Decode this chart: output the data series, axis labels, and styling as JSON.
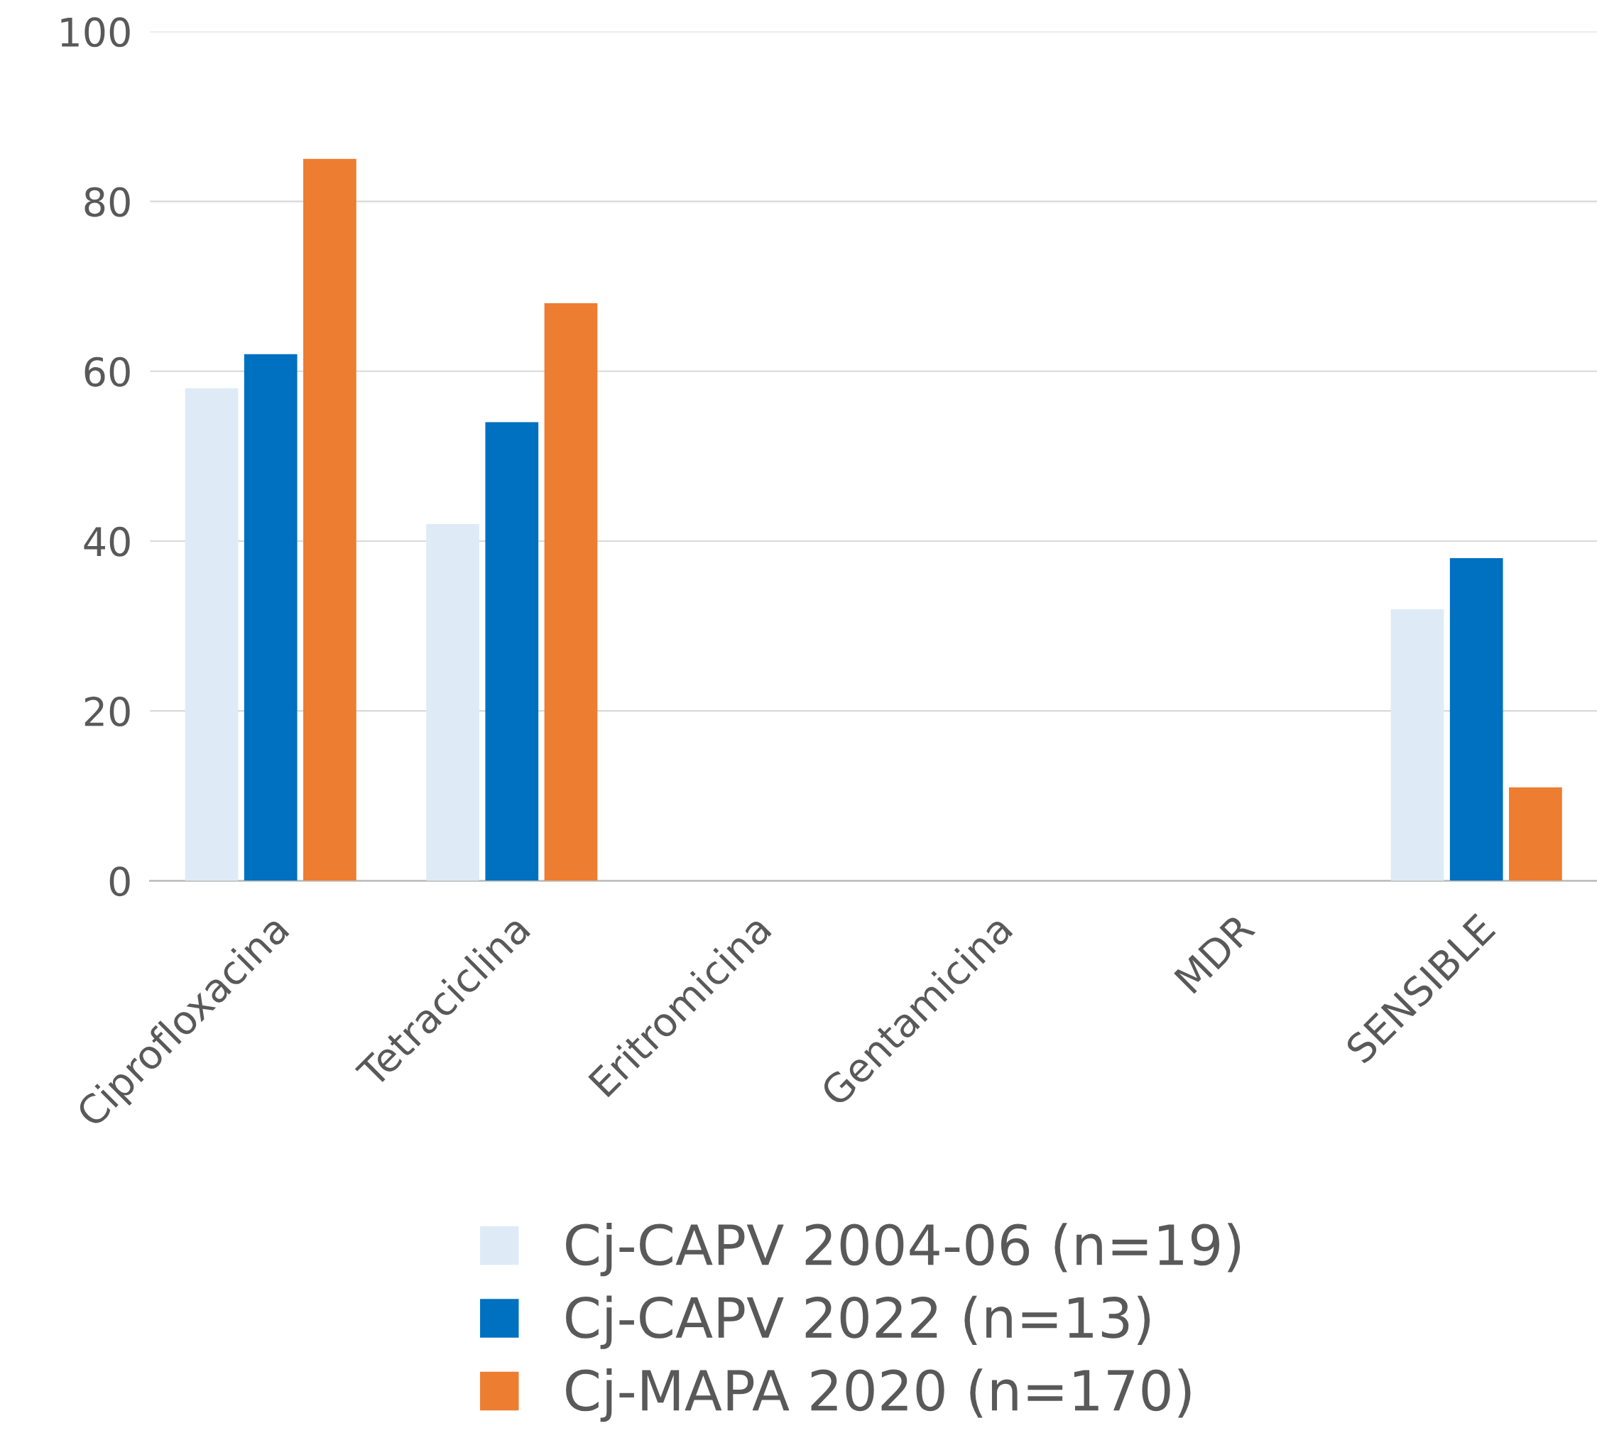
{
  "chart_data": {
    "type": "bar",
    "categories": [
      "Ciprofloxacina",
      "Tetraciclina",
      "Eritromicina",
      "Gentamicina",
      "MDR",
      "SENSIBLE"
    ],
    "series": [
      {
        "name": "Cj-CAPV 2004-06 (n=19)",
        "color": "#deebf7",
        "values": [
          58,
          42,
          0,
          0,
          0,
          32
        ]
      },
      {
        "name": "Cj-CAPV 2022 (n=13)",
        "color": "#0070c0",
        "values": [
          62,
          54,
          0,
          0,
          0,
          38
        ]
      },
      {
        "name": "Cj-MAPA 2020 (n=170)",
        "color": "#ed7d31",
        "values": [
          85,
          68,
          0,
          0,
          0,
          11
        ]
      }
    ],
    "ylim": [
      0,
      100
    ],
    "yticks": [
      0,
      20,
      40,
      60,
      80,
      100
    ],
    "grid": "y",
    "legend": "bottom"
  }
}
